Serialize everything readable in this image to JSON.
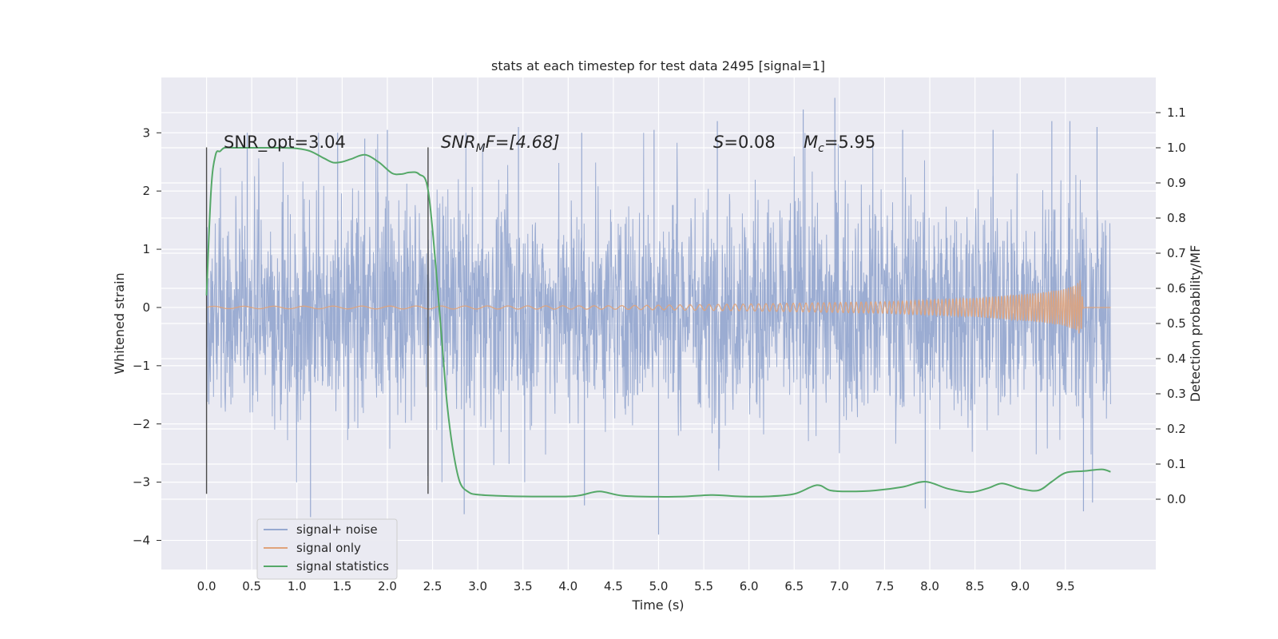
{
  "chart_data": {
    "type": "line",
    "title": "stats at each timestep for test data 2495 [signal=1]",
    "xlabel": "Time (s)",
    "ylabel_left": "Whitened strain",
    "ylabel_right": "Detection probability/MF",
    "xlim": [
      -0.5,
      10.5
    ],
    "ylim_left": [
      -4.5,
      3.95
    ],
    "ylim_right": [
      -0.2,
      1.2
    ],
    "x_ticks": [
      "0.0",
      "0.5",
      "1.0",
      "1.5",
      "2.0",
      "2.5",
      "3.0",
      "3.5",
      "4.0",
      "4.5",
      "5.0",
      "5.5",
      "6.0",
      "6.5",
      "7.0",
      "7.5",
      "8.0",
      "8.5",
      "9.0",
      "9.5"
    ],
    "x_tick_values": [
      0,
      0.5,
      1,
      1.5,
      2,
      2.5,
      3,
      3.5,
      4,
      4.5,
      5,
      5.5,
      6,
      6.5,
      7,
      7.5,
      8,
      8.5,
      9,
      9.5
    ],
    "y_left_ticks": [
      "3",
      "2",
      "1",
      "0",
      "−1",
      "−2",
      "−3",
      "−4"
    ],
    "y_left_tick_values": [
      3,
      2,
      1,
      0,
      -1,
      -2,
      -3,
      -4
    ],
    "y_right_ticks": [
      "1.1",
      "1.0",
      "0.9",
      "0.8",
      "0.7",
      "0.6",
      "0.5",
      "0.4",
      "0.3",
      "0.2",
      "0.1",
      "0.0"
    ],
    "y_right_tick_values": [
      1.1,
      1.0,
      0.9,
      0.8,
      0.7,
      0.6,
      0.5,
      0.4,
      0.3,
      0.2,
      0.1,
      0.0
    ],
    "grid": true,
    "legend_position": "lower-left",
    "vertical_markers": [
      0.0,
      2.45
    ],
    "vertical_marker_range_left": [
      -3.2,
      2.75
    ],
    "series": [
      {
        "name": "signal+ noise",
        "axis": "left",
        "color": "#97a9d0",
        "x_range": [
          0,
          10
        ],
        "envelope_typical": 1.5,
        "extreme_peaks": [
          [
            0.45,
            3.0
          ],
          [
            1.15,
            -3.6
          ],
          [
            1.45,
            3.0
          ],
          [
            1.75,
            2.9
          ],
          [
            2.0,
            3.05
          ],
          [
            2.85,
            -3.55
          ],
          [
            3.45,
            3.1
          ],
          [
            4.15,
            3.0
          ],
          [
            4.18,
            -3.4
          ],
          [
            4.95,
            3.05
          ],
          [
            5.0,
            -3.9
          ],
          [
            5.65,
            3.2
          ],
          [
            6.6,
            3.4
          ],
          [
            6.95,
            3.6
          ],
          [
            7.7,
            3.05
          ],
          [
            7.95,
            -3.45
          ],
          [
            8.7,
            3.05
          ],
          [
            9.35,
            3.2
          ],
          [
            9.55,
            3.2
          ],
          [
            9.7,
            -3.5
          ],
          [
            9.85,
            3.1
          ],
          [
            9.8,
            -3.35
          ]
        ]
      },
      {
        "name": "signal only",
        "axis": "left",
        "color": "#e0a37a",
        "x_range": [
          0,
          10
        ],
        "amplitude": [
          [
            0,
            0.02
          ],
          [
            4.5,
            0.03
          ],
          [
            6.0,
            0.06
          ],
          [
            7.5,
            0.1
          ],
          [
            8.5,
            0.16
          ],
          [
            9.2,
            0.25
          ],
          [
            9.5,
            0.32
          ],
          [
            9.62,
            0.4
          ],
          [
            9.67,
            0.48
          ],
          [
            9.7,
            0.0
          ],
          [
            10.0,
            0.0
          ]
        ]
      },
      {
        "name": "signal statistics",
        "axis": "right",
        "color": "#55a868",
        "x": [
          0.0,
          0.05,
          0.1,
          0.15,
          0.2,
          0.3,
          0.5,
          0.8,
          1.0,
          1.15,
          1.3,
          1.4,
          1.5,
          1.6,
          1.75,
          1.9,
          2.05,
          2.15,
          2.25,
          2.35,
          2.45,
          2.55,
          2.65,
          2.72,
          2.8,
          2.9,
          3.0,
          3.2,
          3.5,
          4.0,
          4.15,
          4.35,
          4.6,
          5.0,
          5.3,
          5.6,
          5.9,
          6.2,
          6.5,
          6.75,
          6.9,
          7.1,
          7.4,
          7.7,
          7.95,
          8.2,
          8.45,
          8.65,
          8.8,
          9.0,
          9.2,
          9.35,
          9.5,
          9.7,
          9.9,
          10.0
        ],
        "y": [
          0.58,
          0.88,
          0.98,
          0.99,
          1.0,
          1.0,
          1.0,
          1.0,
          0.998,
          0.99,
          0.97,
          0.958,
          0.96,
          0.968,
          0.98,
          0.96,
          0.928,
          0.925,
          0.93,
          0.925,
          0.88,
          0.62,
          0.3,
          0.15,
          0.05,
          0.02,
          0.013,
          0.01,
          0.008,
          0.008,
          0.012,
          0.022,
          0.01,
          0.007,
          0.008,
          0.012,
          0.008,
          0.008,
          0.015,
          0.04,
          0.025,
          0.022,
          0.025,
          0.035,
          0.05,
          0.03,
          0.02,
          0.032,
          0.045,
          0.03,
          0.025,
          0.05,
          0.075,
          0.08,
          0.085,
          0.078
        ]
      }
    ],
    "annotations": [
      {
        "id": "snr_opt",
        "label": "SNR_opt=3.04"
      },
      {
        "id": "snr_mf",
        "base": "SNR",
        "sub": "M",
        "rest": "F=[4.68]"
      },
      {
        "id": "s_val",
        "base": "S",
        "rest": "=0.08"
      },
      {
        "id": "mc_val",
        "base": "M",
        "sub": "c",
        "rest": "=5.95"
      }
    ]
  }
}
